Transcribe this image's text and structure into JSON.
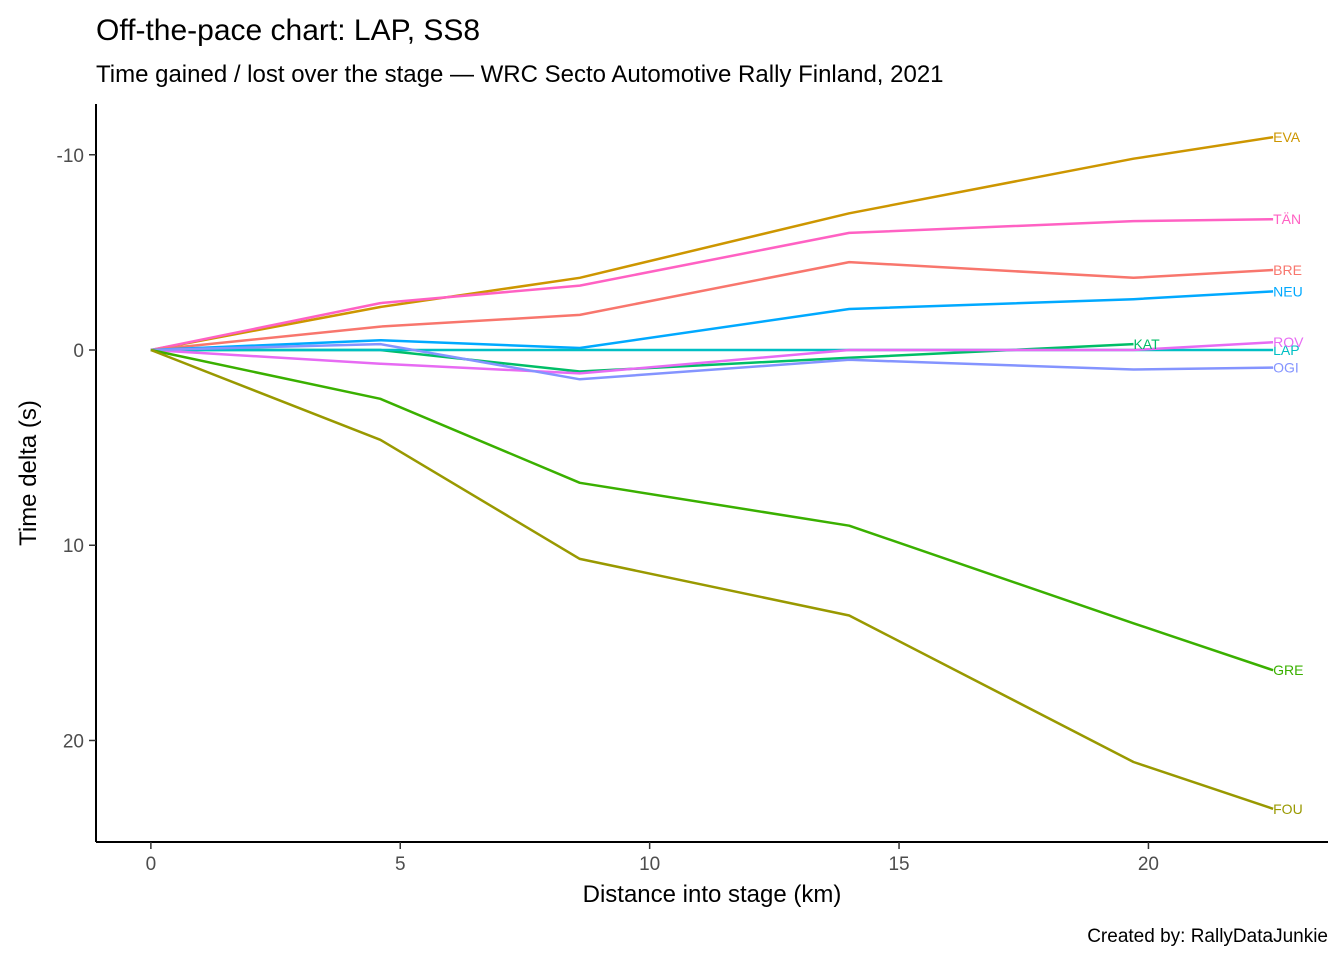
{
  "chart_data": {
    "type": "line",
    "title": "Off-the-pace chart: LAP, SS8",
    "subtitle": "Time gained / lost over the stage — WRC Secto Automotive Rally Finland, 2021",
    "caption": "Created by: RallyDataJunkie",
    "xlabel": "Distance into stage (km)",
    "ylabel": "Time delta (s)",
    "xlim": [
      -1.1,
      23.6
    ],
    "ylim": [
      -12.6,
      25.2
    ],
    "y_reversed": true,
    "x_ticks": [
      0,
      5,
      10,
      15,
      20
    ],
    "x_tick_labels": [
      "0",
      "5",
      "10",
      "15",
      "20"
    ],
    "y_ticks": [
      -10,
      0,
      10,
      20
    ],
    "y_tick_labels": [
      "-10",
      "0",
      "10",
      "20"
    ],
    "grid": false,
    "legend": "none",
    "x": [
      0,
      4.6,
      8.6,
      14.0,
      19.7,
      22.5
    ],
    "series": [
      {
        "name": "EVA",
        "color": "#CD9600",
        "values": [
          0,
          -2.2,
          -3.7,
          -7.0,
          -9.8,
          -10.9
        ]
      },
      {
        "name": "TÄN",
        "color": "#FF61C3",
        "values": [
          0,
          -2.4,
          -3.3,
          -6.0,
          -6.6,
          -6.7
        ]
      },
      {
        "name": "BRE",
        "color": "#F8766D",
        "values": [
          0,
          -1.2,
          -1.8,
          -4.5,
          -3.7,
          -4.1
        ]
      },
      {
        "name": "NEU",
        "color": "#00A9FF",
        "values": [
          0,
          -0.5,
          -0.1,
          -2.1,
          -2.6,
          -3.0
        ]
      },
      {
        "name": "KAT",
        "color": "#00BE67",
        "values": [
          0,
          0.0,
          1.1,
          0.4,
          -0.3,
          null
        ]
      },
      {
        "name": "LAP",
        "color": "#00BFC4",
        "values": [
          0,
          0,
          0,
          0,
          0,
          0
        ]
      },
      {
        "name": "ROV",
        "color": "#E76BF3",
        "values": [
          0,
          0.7,
          1.2,
          0.0,
          0.0,
          -0.4
        ]
      },
      {
        "name": "OGI",
        "color": "#8494FF",
        "values": [
          0,
          -0.3,
          1.5,
          0.5,
          1.0,
          0.9
        ]
      },
      {
        "name": "GRE",
        "color": "#3AB000",
        "values": [
          0,
          2.5,
          6.8,
          9.0,
          14.0,
          16.4
        ]
      },
      {
        "name": "FOU",
        "color": "#999900",
        "values": [
          0,
          4.6,
          10.7,
          13.6,
          21.1,
          23.5
        ]
      }
    ]
  }
}
